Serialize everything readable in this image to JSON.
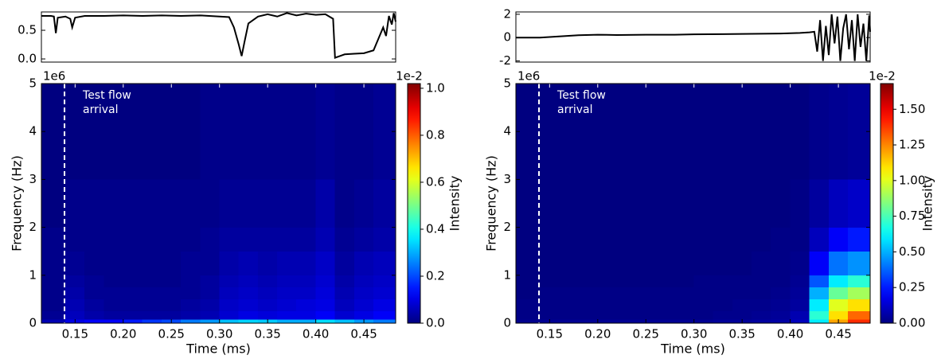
{
  "chart_data": [
    {
      "type": "line",
      "color": "#000000",
      "x": [
        0.115,
        0.125,
        0.128,
        0.13,
        0.132,
        0.14,
        0.145,
        0.147,
        0.15,
        0.16,
        0.18,
        0.2,
        0.22,
        0.24,
        0.26,
        0.28,
        0.3,
        0.31,
        0.315,
        0.32,
        0.323,
        0.326,
        0.33,
        0.34,
        0.35,
        0.36,
        0.37,
        0.38,
        0.39,
        0.4,
        0.41,
        0.418,
        0.42,
        0.425,
        0.43,
        0.44,
        0.45,
        0.46,
        0.465,
        0.47,
        0.473,
        0.476,
        0.479,
        0.481,
        0.483
      ],
      "values": [
        0.75,
        0.75,
        0.74,
        0.45,
        0.72,
        0.74,
        0.7,
        0.55,
        0.72,
        0.75,
        0.75,
        0.76,
        0.75,
        0.76,
        0.75,
        0.76,
        0.74,
        0.73,
        0.55,
        0.25,
        0.05,
        0.3,
        0.62,
        0.74,
        0.78,
        0.74,
        0.8,
        0.76,
        0.79,
        0.77,
        0.78,
        0.7,
        0.02,
        0.05,
        0.08,
        0.09,
        0.1,
        0.15,
        0.35,
        0.55,
        0.4,
        0.75,
        0.6,
        0.8,
        0.65
      ],
      "xlim": [
        0.115,
        0.483
      ],
      "ylim": [
        -0.055,
        0.82
      ],
      "yticks": [
        {
          "value": 0,
          "label": "0.0"
        },
        0.5
      ]
    },
    {
      "type": "heatmap",
      "colormap": "jet",
      "x_edges": [
        0.115,
        0.14,
        0.16,
        0.18,
        0.2,
        0.22,
        0.24,
        0.26,
        0.28,
        0.3,
        0.32,
        0.34,
        0.36,
        0.38,
        0.4,
        0.42,
        0.44,
        0.46,
        0.483
      ],
      "y_edges": [
        0,
        0.08,
        0.25,
        0.5,
        0.75,
        1,
        1.5,
        2,
        3,
        5
      ],
      "z": [
        [
          0.05,
          0.1,
          0.12,
          0.12,
          0.15,
          0.18,
          0.2,
          0.25,
          0.28,
          0.32,
          0.34,
          0.33,
          0.3,
          0.3,
          0.35,
          0.32,
          0.28,
          0.25
        ],
        [
          0.02,
          0.06,
          0.04,
          0.03,
          0.03,
          0.03,
          0.03,
          0.04,
          0.05,
          0.08,
          0.1,
          0.09,
          0.1,
          0.1,
          0.12,
          0.08,
          0.1,
          0.12
        ],
        [
          0.01,
          0.05,
          0.03,
          0.02,
          0.02,
          0.02,
          0.02,
          0.03,
          0.04,
          0.07,
          0.08,
          0.07,
          0.08,
          0.09,
          0.1,
          0.06,
          0.08,
          0.1
        ],
        [
          0.01,
          0.04,
          0.02,
          0.02,
          0.02,
          0.02,
          0.02,
          0.02,
          0.03,
          0.06,
          0.07,
          0.06,
          0.07,
          0.07,
          0.09,
          0.05,
          0.07,
          0.08
        ],
        [
          0.01,
          0.03,
          0.02,
          0.01,
          0.01,
          0.01,
          0.01,
          0.02,
          0.03,
          0.05,
          0.06,
          0.05,
          0.06,
          0.06,
          0.08,
          0.04,
          0.06,
          0.07
        ],
        [
          0.01,
          0.02,
          0.01,
          0.01,
          0.01,
          0.01,
          0.01,
          0.02,
          0.02,
          0.04,
          0.05,
          0.04,
          0.05,
          0.05,
          0.07,
          0.03,
          0.05,
          0.06
        ],
        [
          0.01,
          0.01,
          0.01,
          0.01,
          0.01,
          0.01,
          0.01,
          0.01,
          0.02,
          0.03,
          0.03,
          0.03,
          0.03,
          0.03,
          0.05,
          0.02,
          0.03,
          0.04
        ],
        [
          0,
          0.01,
          0.01,
          0.01,
          0.01,
          0.01,
          0.01,
          0.01,
          0.01,
          0.02,
          0.02,
          0.02,
          0.02,
          0.02,
          0.04,
          0.01,
          0.02,
          0.03
        ],
        [
          0,
          0,
          0,
          0,
          0,
          0,
          0,
          0,
          0.01,
          0.01,
          0.01,
          0.01,
          0.01,
          0.01,
          0.02,
          0.01,
          0.01,
          0.02
        ]
      ],
      "xlim": [
        0.115,
        0.483
      ],
      "ylim": [
        0,
        5
      ],
      "xticks": [
        0.15,
        {
          "value": 0.2,
          "label": "0.20"
        },
        0.25,
        {
          "value": 0.3,
          "label": "0.30"
        },
        0.35,
        {
          "value": 0.4,
          "label": "0.40"
        },
        0.45
      ],
      "yticks": [
        0,
        1,
        2,
        3,
        4,
        5
      ],
      "xlabel": "Time (ms)",
      "ylabel": "Frequency (Hz)",
      "y_offset_label": "1e6",
      "annotation": {
        "lines": [
          "Test flow",
          "arrival"
        ],
        "x": 0.139,
        "color": "#ffffff"
      },
      "colorbar": {
        "label": "Intensity",
        "offset_label": "1e-2",
        "clim": [
          0,
          1.02
        ],
        "ticks": [
          {
            "value": 0,
            "label": "0.0"
          },
          {
            "value": 0.2,
            "label": "0.2"
          },
          {
            "value": 0.4,
            "label": "0.4"
          },
          {
            "value": 0.6,
            "label": "0.6"
          },
          {
            "value": 0.8,
            "label": "0.8"
          },
          {
            "value": 1,
            "label": "1.0"
          }
        ]
      }
    },
    {
      "type": "line",
      "color": "#000000",
      "x": [
        0.115,
        0.14,
        0.16,
        0.18,
        0.2,
        0.22,
        0.25,
        0.28,
        0.3,
        0.33,
        0.36,
        0.39,
        0.41,
        0.42,
        0.425,
        0.428,
        0.431,
        0.434,
        0.437,
        0.44,
        0.443,
        0.446,
        0.449,
        0.452,
        0.455,
        0.458,
        0.461,
        0.464,
        0.467,
        0.47,
        0.473,
        0.476,
        0.479,
        0.482,
        0.483
      ],
      "values": [
        0.0,
        0.0,
        0.1,
        0.2,
        0.25,
        0.22,
        0.25,
        0.25,
        0.28,
        0.3,
        0.32,
        0.35,
        0.4,
        0.45,
        0.5,
        -1.2,
        1.5,
        -2.0,
        1.0,
        -1.5,
        2.0,
        -0.5,
        1.8,
        -2.0,
        0.8,
        2.0,
        -1.0,
        1.5,
        -2.0,
        2.0,
        -0.8,
        1.2,
        -2.0,
        1.9,
        0.5
      ],
      "xlim": [
        0.115,
        0.483
      ],
      "ylim": [
        -2.1,
        2.2
      ],
      "yticks": [
        -2,
        0,
        2
      ]
    },
    {
      "type": "heatmap",
      "colormap": "jet",
      "x_edges": [
        0.115,
        0.14,
        0.16,
        0.18,
        0.2,
        0.22,
        0.24,
        0.26,
        0.28,
        0.3,
        0.32,
        0.34,
        0.36,
        0.38,
        0.4,
        0.42,
        0.44,
        0.46,
        0.483
      ],
      "y_edges": [
        0,
        0.08,
        0.25,
        0.5,
        0.75,
        1,
        1.5,
        2,
        3,
        5
      ],
      "z": [
        [
          0.02,
          0.03,
          0.03,
          0.03,
          0.03,
          0.03,
          0.03,
          0.03,
          0.03,
          0.03,
          0.04,
          0.04,
          0.05,
          0.06,
          0.1,
          0.6,
          1.2,
          1.4
        ],
        [
          0.01,
          0.01,
          0.01,
          0.01,
          0.01,
          0.01,
          0.01,
          0.01,
          0.01,
          0.01,
          0.02,
          0.02,
          0.03,
          0.04,
          0.08,
          0.7,
          1.1,
          1.3
        ],
        [
          0.01,
          0.01,
          0.01,
          0.01,
          0.01,
          0.01,
          0.01,
          0.01,
          0.01,
          0.01,
          0.01,
          0.02,
          0.02,
          0.03,
          0.05,
          0.6,
          1.0,
          1.1
        ],
        [
          0,
          0.01,
          0.01,
          0.01,
          0.01,
          0.01,
          0.01,
          0.01,
          0.01,
          0.01,
          0.01,
          0.01,
          0.01,
          0.02,
          0.04,
          0.5,
          0.8,
          0.9
        ],
        [
          0,
          0,
          0,
          0,
          0,
          0,
          0,
          0,
          0,
          0.01,
          0.01,
          0.01,
          0.01,
          0.01,
          0.03,
          0.35,
          0.6,
          0.7
        ],
        [
          0,
          0,
          0,
          0,
          0,
          0,
          0,
          0,
          0,
          0,
          0,
          0,
          0.01,
          0.01,
          0.02,
          0.2,
          0.4,
          0.45
        ],
        [
          0,
          0,
          0,
          0,
          0,
          0,
          0,
          0,
          0,
          0,
          0,
          0,
          0,
          0.01,
          0.01,
          0.1,
          0.2,
          0.25
        ],
        [
          0,
          0,
          0,
          0,
          0,
          0,
          0,
          0,
          0,
          0,
          0,
          0,
          0,
          0,
          0.01,
          0.05,
          0.1,
          0.12
        ],
        [
          0,
          0,
          0,
          0,
          0,
          0,
          0,
          0,
          0,
          0,
          0,
          0,
          0,
          0,
          0,
          0.02,
          0.03,
          0.04
        ]
      ],
      "xlim": [
        0.115,
        0.483
      ],
      "ylim": [
        0,
        5
      ],
      "xticks": [
        0.15,
        {
          "value": 0.2,
          "label": "0.20"
        },
        0.25,
        {
          "value": 0.3,
          "label": "0.30"
        },
        0.35,
        {
          "value": 0.4,
          "label": "0.40"
        },
        0.45
      ],
      "yticks": [
        0,
        1,
        2,
        3,
        4,
        5
      ],
      "xlabel": "Time (ms)",
      "ylabel": "Frequency (Hz)",
      "y_offset_label": "1e6",
      "annotation": {
        "lines": [
          "Test flow",
          "arrival"
        ],
        "x": 0.139,
        "color": "#ffffff"
      },
      "colorbar": {
        "label": "Intensity",
        "offset_label": "1e-2",
        "clim": [
          0,
          1.68
        ],
        "ticks": [
          {
            "value": 0,
            "label": "0.00"
          },
          {
            "value": 0.25,
            "label": "0.25"
          },
          {
            "value": 0.5,
            "label": "0.50"
          },
          {
            "value": 0.75,
            "label": "0.75"
          },
          {
            "value": 1,
            "label": "1.00"
          },
          {
            "value": 1.25,
            "label": "1.25"
          },
          {
            "value": 1.5,
            "label": "1.50"
          }
        ]
      }
    }
  ]
}
